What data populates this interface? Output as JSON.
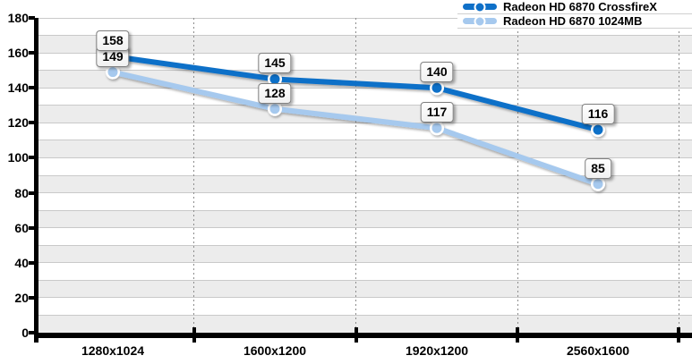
{
  "chart_data": {
    "type": "line",
    "title": "",
    "xlabel": "",
    "ylabel": "",
    "categories": [
      "1280x1024",
      "1600x1200",
      "1920x1200",
      "2560x1600"
    ],
    "series": [
      {
        "name": "Radeon HD 6870 CrossfireX",
        "color": "#0f70c8",
        "values": [
          158,
          145,
          140,
          116
        ]
      },
      {
        "name": "Radeon HD 6870 1024MB",
        "color": "#a6c9ee",
        "values": [
          149,
          128,
          117,
          85
        ]
      }
    ],
    "ylim": [
      0,
      180
    ],
    "ytick_step": 20,
    "band_step": 10,
    "grid": true,
    "legend_position": "top-right",
    "data_labels_visible": true
  },
  "colors": {
    "band": "#ececec",
    "gridline": "#c9c9c9",
    "separator_dots": "#8c8c8c",
    "axis": "#000000",
    "marker_ring": "#ffffff",
    "value_box_border": "#808080",
    "value_box_bg": "#ffffff",
    "text": "#000000",
    "legend_row_border": "#d0d0d0"
  }
}
